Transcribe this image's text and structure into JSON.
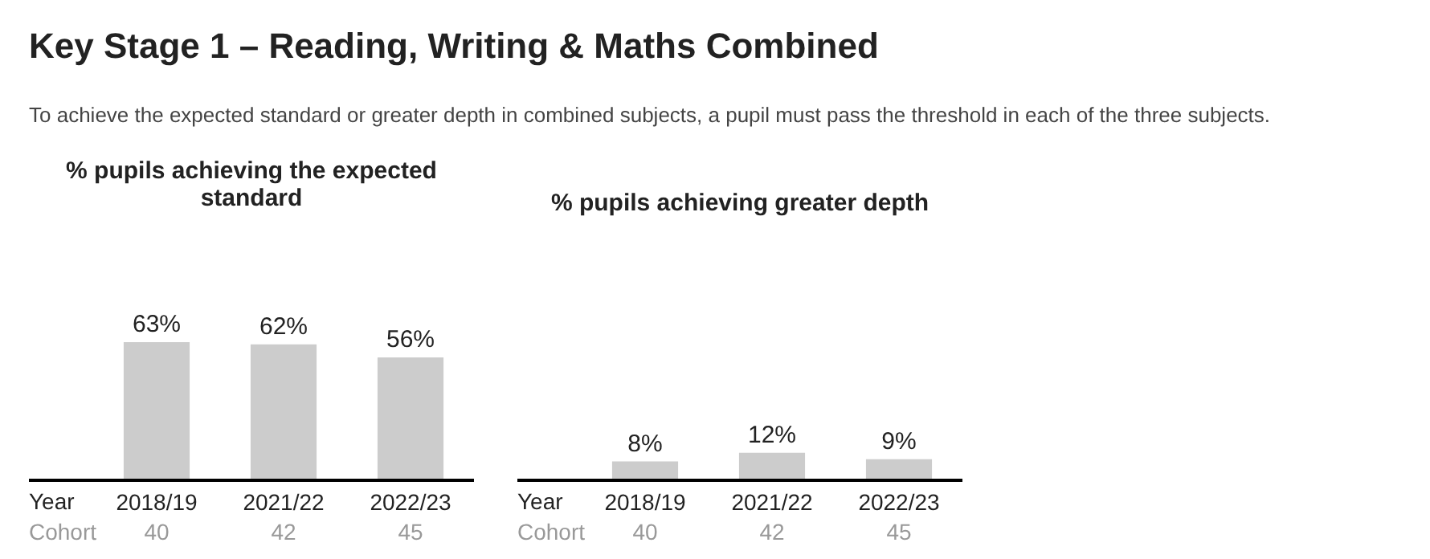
{
  "chart_data": [
    {
      "type": "bar",
      "title": "% pupils achieving the expected standard",
      "categories": [
        "2018/19",
        "2021/22",
        "2022/23"
      ],
      "values": [
        63,
        62,
        56
      ],
      "color": "#cccccc",
      "value_labels": [
        "63%",
        "62%",
        "56%"
      ],
      "grid": false,
      "legend": false,
      "tick_labels": "x",
      "annotations": [
        "Key Stage 1 – Reading, Writing & Maths Combined",
        "To achieve the expected standard or greater depth in combined subjects, a pupil must pass the threshold in each of the three subjects.",
        "Year",
        "Cohort",
        "40",
        "42",
        "45"
      ]
    },
    {
      "type": "bar",
      "title": "% pupils achieving greater depth",
      "categories": [
        "2018/19",
        "2021/22",
        "2022/23"
      ],
      "values": [
        8,
        12,
        9
      ],
      "color": "#cccccc",
      "value_labels": [
        "8%",
        "12%",
        "9%"
      ],
      "grid": false,
      "legend": false,
      "tick_labels": "x",
      "annotations": [
        "Year",
        "Cohort",
        "40",
        "42",
        "45"
      ]
    }
  ]
}
